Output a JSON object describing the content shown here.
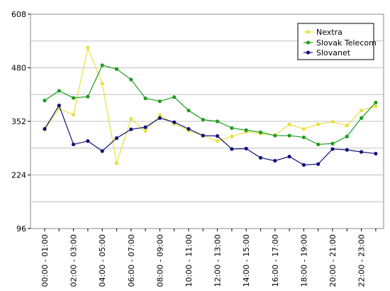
{
  "chart_data": {
    "type": "line",
    "xlabel": "",
    "ylabel": "",
    "ylim": [
      96,
      608
    ],
    "yticks": [
      96,
      224,
      352,
      480,
      608
    ],
    "grid": true,
    "legend_position": "top-right",
    "x": [
      "00:00 - 01:00",
      "01:00 - 02:00",
      "02:00 - 03:00",
      "03:00 - 04:00",
      "04:00 - 05:00",
      "05:00 - 06:00",
      "06:00 - 07:00",
      "07:00 - 08:00",
      "08:00 - 09:00",
      "09:00 - 10:00",
      "10:00 - 11:00",
      "11:00 - 12:00",
      "12:00 - 13:00",
      "13:00 - 14:00",
      "14:00 - 15:00",
      "15:00 - 16:00",
      "16:00 - 17:00",
      "17:00 - 18:00",
      "18:00 - 19:00",
      "19:00 - 20:00",
      "20:00 - 21:00",
      "21:00 - 22:00",
      "22:00 - 23:00",
      "23:00 - 24:00"
    ],
    "x_tick_labels": [
      "00:00 - 01:00",
      "",
      "02:00 - 03:00",
      "",
      "04:00 - 05:00",
      "",
      "06:00 - 07:00",
      "",
      "08:00 - 09:00",
      "",
      "10:00 - 11:00",
      "",
      "12:00 - 13:00",
      "",
      "14:00 - 15:00",
      "",
      "16:00 - 17:00",
      "",
      "18:00 - 19:00",
      "",
      "20:00 - 21:00",
      "",
      "22:00 - 23:00",
      ""
    ],
    "series": [
      {
        "name": "Nextra",
        "color": "#e8e040",
        "values": [
          332,
          382,
          368,
          528,
          442,
          252,
          358,
          329,
          367,
          346,
          330,
          318,
          305,
          316,
          327,
          323,
          319,
          345,
          334,
          345,
          351,
          342,
          378,
          388
        ]
      },
      {
        "name": "Slovak Telecom",
        "color": "#1e9c1e",
        "values": [
          402,
          425,
          408,
          411,
          486,
          477,
          452,
          407,
          400,
          410,
          378,
          356,
          352,
          336,
          331,
          326,
          318,
          318,
          314,
          297,
          299,
          316,
          360,
          397
        ]
      },
      {
        "name": "Slovanet",
        "color": "#10107a",
        "values": [
          334,
          390,
          297,
          305,
          281,
          312,
          333,
          338,
          360,
          350,
          334,
          318,
          317,
          286,
          287,
          265,
          258,
          268,
          248,
          250,
          286,
          284,
          279,
          275
        ]
      }
    ]
  },
  "legend": {
    "items": [
      "Nextra",
      "Slovak Telecom",
      "Slovanet"
    ]
  }
}
